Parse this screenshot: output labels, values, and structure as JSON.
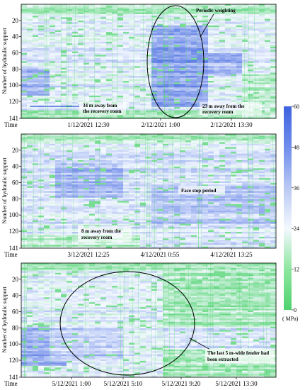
{
  "chart_data": {
    "type": "heatmap",
    "colorbar": {
      "min": 0,
      "max": 60,
      "ticks": [
        0,
        12,
        24,
        36,
        48,
        60
      ],
      "unit": "( MPa)",
      "colors": [
        "#4ed36e",
        "#f4f9ff",
        "#3f63e0"
      ]
    },
    "panels": [
      {
        "ylabel": "Number of hydraulic support",
        "yticks": [
          20,
          40,
          60,
          80,
          100,
          120,
          141
        ],
        "ylim": [
          0,
          141
        ],
        "xlabel": "Time",
        "xticks": [
          "1/12/2021 12:30",
          "2/12/2021 1:00",
          "2/12/2021 13:30"
        ],
        "annotations": [
          {
            "text": "Periodic weighting"
          },
          {
            "text": "34 m away from\nthe recovery room"
          },
          {
            "text": "23 m away from the\nrecovery room"
          }
        ]
      },
      {
        "ylabel": "Number of hydraulic support",
        "yticks": [
          20,
          40,
          60,
          80,
          100,
          120,
          141
        ],
        "ylim": [
          0,
          141
        ],
        "xlabel": "Time",
        "xticks": [
          "3/12/2021 12:25",
          "4/12/2021 0:55",
          "4/12/2021 13:25"
        ],
        "annotations": [
          {
            "text": "Face stop period"
          },
          {
            "text": "8 m away from the\nrecovery room"
          }
        ]
      },
      {
        "ylabel": "Number of hydraulic support",
        "yticks": [
          20,
          40,
          60,
          80,
          100,
          120,
          141
        ],
        "ylim": [
          0,
          141
        ],
        "xlabel": "Time",
        "xticks": [
          "5/12/2021 1:00",
          "5/12/2021 5:10",
          "5/12/2021 9:20",
          "5/12/2021 13:30"
        ],
        "annotations": [
          {
            "text": "The last 5 m-wide fender had\nbeen extracted"
          }
        ]
      }
    ]
  }
}
